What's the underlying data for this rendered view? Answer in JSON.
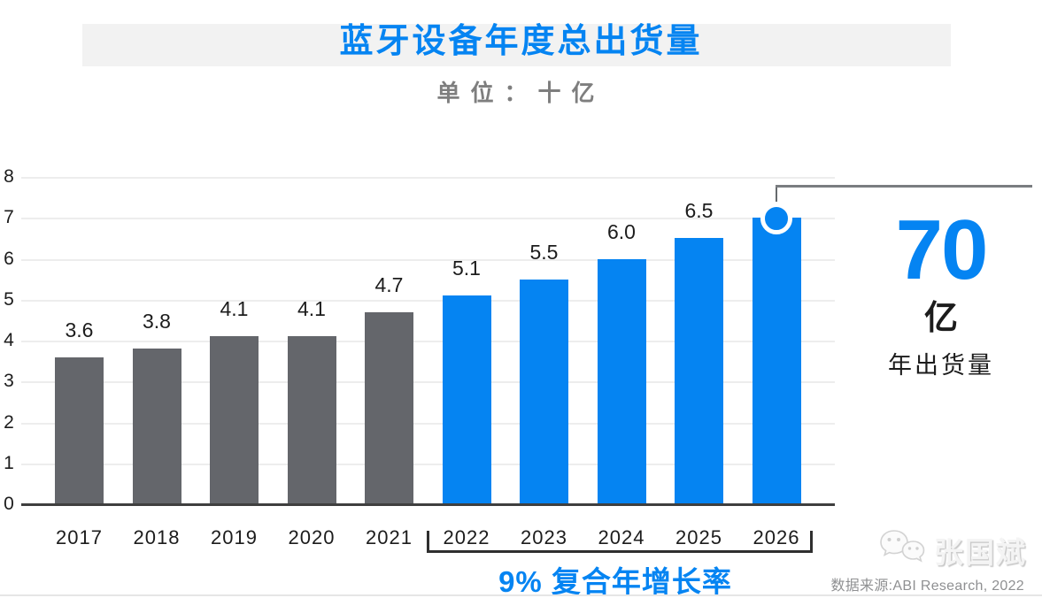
{
  "header": {
    "title": "蓝牙设备年度总出货量",
    "subtitle": "单位：十亿"
  },
  "chart_data": {
    "type": "bar",
    "title": "蓝牙设备年度总出货量",
    "unit_note": "单位：十亿",
    "categories": [
      "2017",
      "2018",
      "2019",
      "2020",
      "2021",
      "2022",
      "2023",
      "2024",
      "2025",
      "2026"
    ],
    "values": [
      3.6,
      3.8,
      4.1,
      4.1,
      4.7,
      5.1,
      5.5,
      6.0,
      6.5,
      7.0
    ],
    "value_labels": [
      "3.6",
      "3.8",
      "4.1",
      "4.1",
      "4.7",
      "5.1",
      "5.5",
      "6.0",
      "6.5",
      "7.0"
    ],
    "ylim": [
      0,
      8
    ],
    "yticks": [
      0,
      1,
      2,
      3,
      4,
      5,
      6,
      7,
      8
    ],
    "grid": true,
    "forecast_start_index": 5,
    "highlight_index": 9,
    "colors": {
      "historical_bar": "#64666B",
      "forecast_bar": "#0584F2",
      "accent_blue": "#0584F2"
    },
    "annotation": {
      "value": "70",
      "unit": "亿",
      "caption": "年出货量"
    },
    "cagr_label": "9% 复合年增长率"
  },
  "footer": {
    "watermark": "张国斌",
    "source": "数据来源:ABI Research, 2022"
  }
}
